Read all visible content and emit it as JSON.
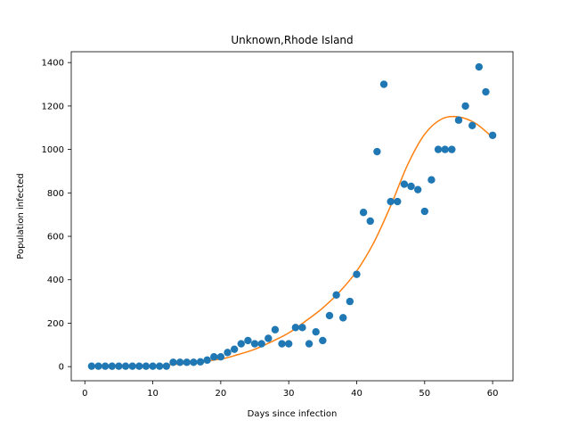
{
  "chart_data": {
    "type": "scatter",
    "title": "Unknown,Rhode Island",
    "xlabel": "Days since infection",
    "ylabel": "Population infected",
    "xlim": [
      -2,
      63
    ],
    "ylim": [
      -65,
      1450
    ],
    "xticks": [
      0,
      10,
      20,
      30,
      40,
      50,
      60
    ],
    "yticks": [
      0,
      200,
      400,
      600,
      800,
      1000,
      1200,
      1400
    ],
    "grid": false,
    "scatter_color": "#1f77b4",
    "line_color": "#ff7f0e",
    "series": [
      {
        "type": "scatter",
        "x": [
          1,
          2,
          3,
          4,
          5,
          6,
          7,
          8,
          9,
          10,
          11,
          12,
          13,
          14,
          15,
          16,
          17,
          18,
          19,
          20,
          21,
          22,
          23,
          24,
          25,
          26,
          27,
          28,
          29,
          30,
          31,
          32,
          33,
          34,
          35,
          36,
          37,
          38,
          39,
          40,
          41,
          42,
          43,
          44,
          45,
          46,
          47,
          48,
          49,
          50,
          51,
          52,
          53,
          54,
          55,
          56,
          57,
          58,
          59,
          60
        ],
        "y": [
          2,
          2,
          2,
          2,
          2,
          2,
          2,
          2,
          2,
          2,
          2,
          2,
          20,
          20,
          20,
          20,
          22,
          30,
          45,
          45,
          65,
          80,
          105,
          120,
          105,
          105,
          130,
          170,
          105,
          105,
          180,
          180,
          105,
          160,
          120,
          235,
          330,
          225,
          300,
          425,
          710,
          670,
          990,
          1300,
          760,
          760,
          840,
          830,
          815,
          715,
          860,
          1000,
          1000,
          1000,
          1135,
          1200,
          1110,
          1380,
          1265,
          1065
        ]
      },
      {
        "type": "line",
        "x": [
          1,
          5,
          10,
          15,
          20,
          22.5,
          25,
          27.5,
          30,
          32.5,
          35,
          37.5,
          40,
          42.5,
          45,
          47.5,
          50,
          52.5,
          55,
          57.5,
          60
        ],
        "y": [
          2,
          2,
          5,
          15,
          35,
          55,
          80,
          115,
          155,
          210,
          270,
          345,
          440,
          570,
          740,
          930,
          1070,
          1140,
          1150,
          1120,
          1055
        ]
      }
    ]
  }
}
